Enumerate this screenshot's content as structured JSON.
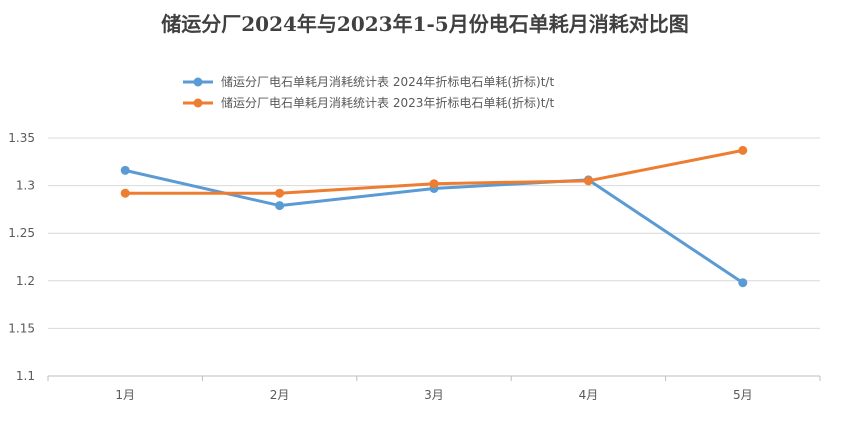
{
  "chart_data": {
    "type": "line",
    "title": "储运分厂2024年与2023年1-5月份电石单耗月消耗对比图",
    "xlabel": "",
    "ylabel": "",
    "categories": [
      "1月",
      "2月",
      "3月",
      "4月",
      "5月"
    ],
    "ylim": [
      1.1,
      1.35
    ],
    "yticks": [
      "1.1",
      "1.15",
      "1.2",
      "1.25",
      "1.3",
      "1.35"
    ],
    "grid": true,
    "legend_position": "top",
    "series": [
      {
        "name": "储运分厂电石单耗月消耗统计表 2024年折标电石单耗(折标)t/t",
        "values": [
          1.316,
          1.279,
          1.297,
          1.306,
          1.198
        ],
        "color": "#5B9BD5"
      },
      {
        "name": "储运分厂电石单耗月消耗统计表 2023年折标电石单耗(折标)t/t",
        "values": [
          1.292,
          1.292,
          1.302,
          1.305,
          1.337
        ],
        "color": "#ED7D31"
      }
    ]
  },
  "colors": {
    "grid": "#D9D9D9",
    "axis": "#BFBFBF",
    "text": "#595959",
    "title": "#404040"
  }
}
